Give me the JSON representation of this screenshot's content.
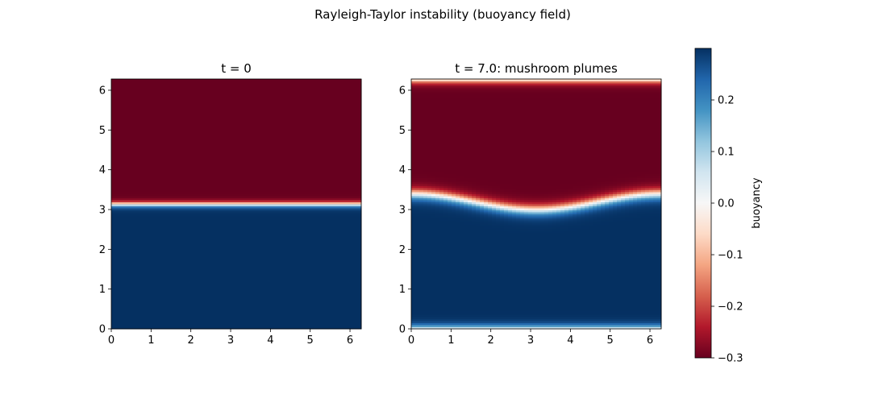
{
  "figure": {
    "title": "Rayleigh-Taylor instability (buoyancy field)"
  },
  "chart_data": [
    {
      "type": "heatmap",
      "title": "t = 0",
      "x_range": [
        0,
        6.283
      ],
      "y_range": [
        0,
        6.283
      ],
      "xticks": [
        0,
        1,
        2,
        3,
        4,
        5,
        6
      ],
      "yticks": [
        0,
        1,
        2,
        3,
        4,
        5,
        6
      ],
      "field": {
        "interface_height": 3.14,
        "perturbation_amplitude": 0.0,
        "interface_thickness": 0.08,
        "lower_value": 0.3,
        "upper_value": -0.3,
        "bottom_layer": false
      }
    },
    {
      "type": "heatmap",
      "title": "t = 7.0: mushroom plumes",
      "x_range": [
        0,
        6.283
      ],
      "y_range": [
        0,
        6.283
      ],
      "xticks": [
        0,
        1,
        2,
        3,
        4,
        5,
        6
      ],
      "yticks": [
        0,
        1,
        2,
        3,
        4,
        5,
        6
      ],
      "field": {
        "interface_height": 3.2,
        "perturbation_amplitude": 0.2,
        "interface_thickness": 0.16,
        "lower_value": 0.3,
        "upper_value": -0.3,
        "bottom_layer": true
      }
    }
  ],
  "colorbar": {
    "label": "buoyancy",
    "vmin": -0.3,
    "vmax": 0.3,
    "ticks": [
      0.2,
      0.1,
      0.0,
      -0.1,
      -0.2,
      -0.3
    ],
    "tick_labels": [
      "0.2",
      "0.1",
      "0.0",
      "−0.1",
      "−0.2",
      "−0.3"
    ],
    "colormap": "RdBu",
    "stops": [
      "#67001f",
      "#b2182b",
      "#d6604d",
      "#f4a582",
      "#fddbc7",
      "#f7f7f7",
      "#d1e5f0",
      "#92c5de",
      "#4393c3",
      "#2166ac",
      "#053061"
    ]
  }
}
